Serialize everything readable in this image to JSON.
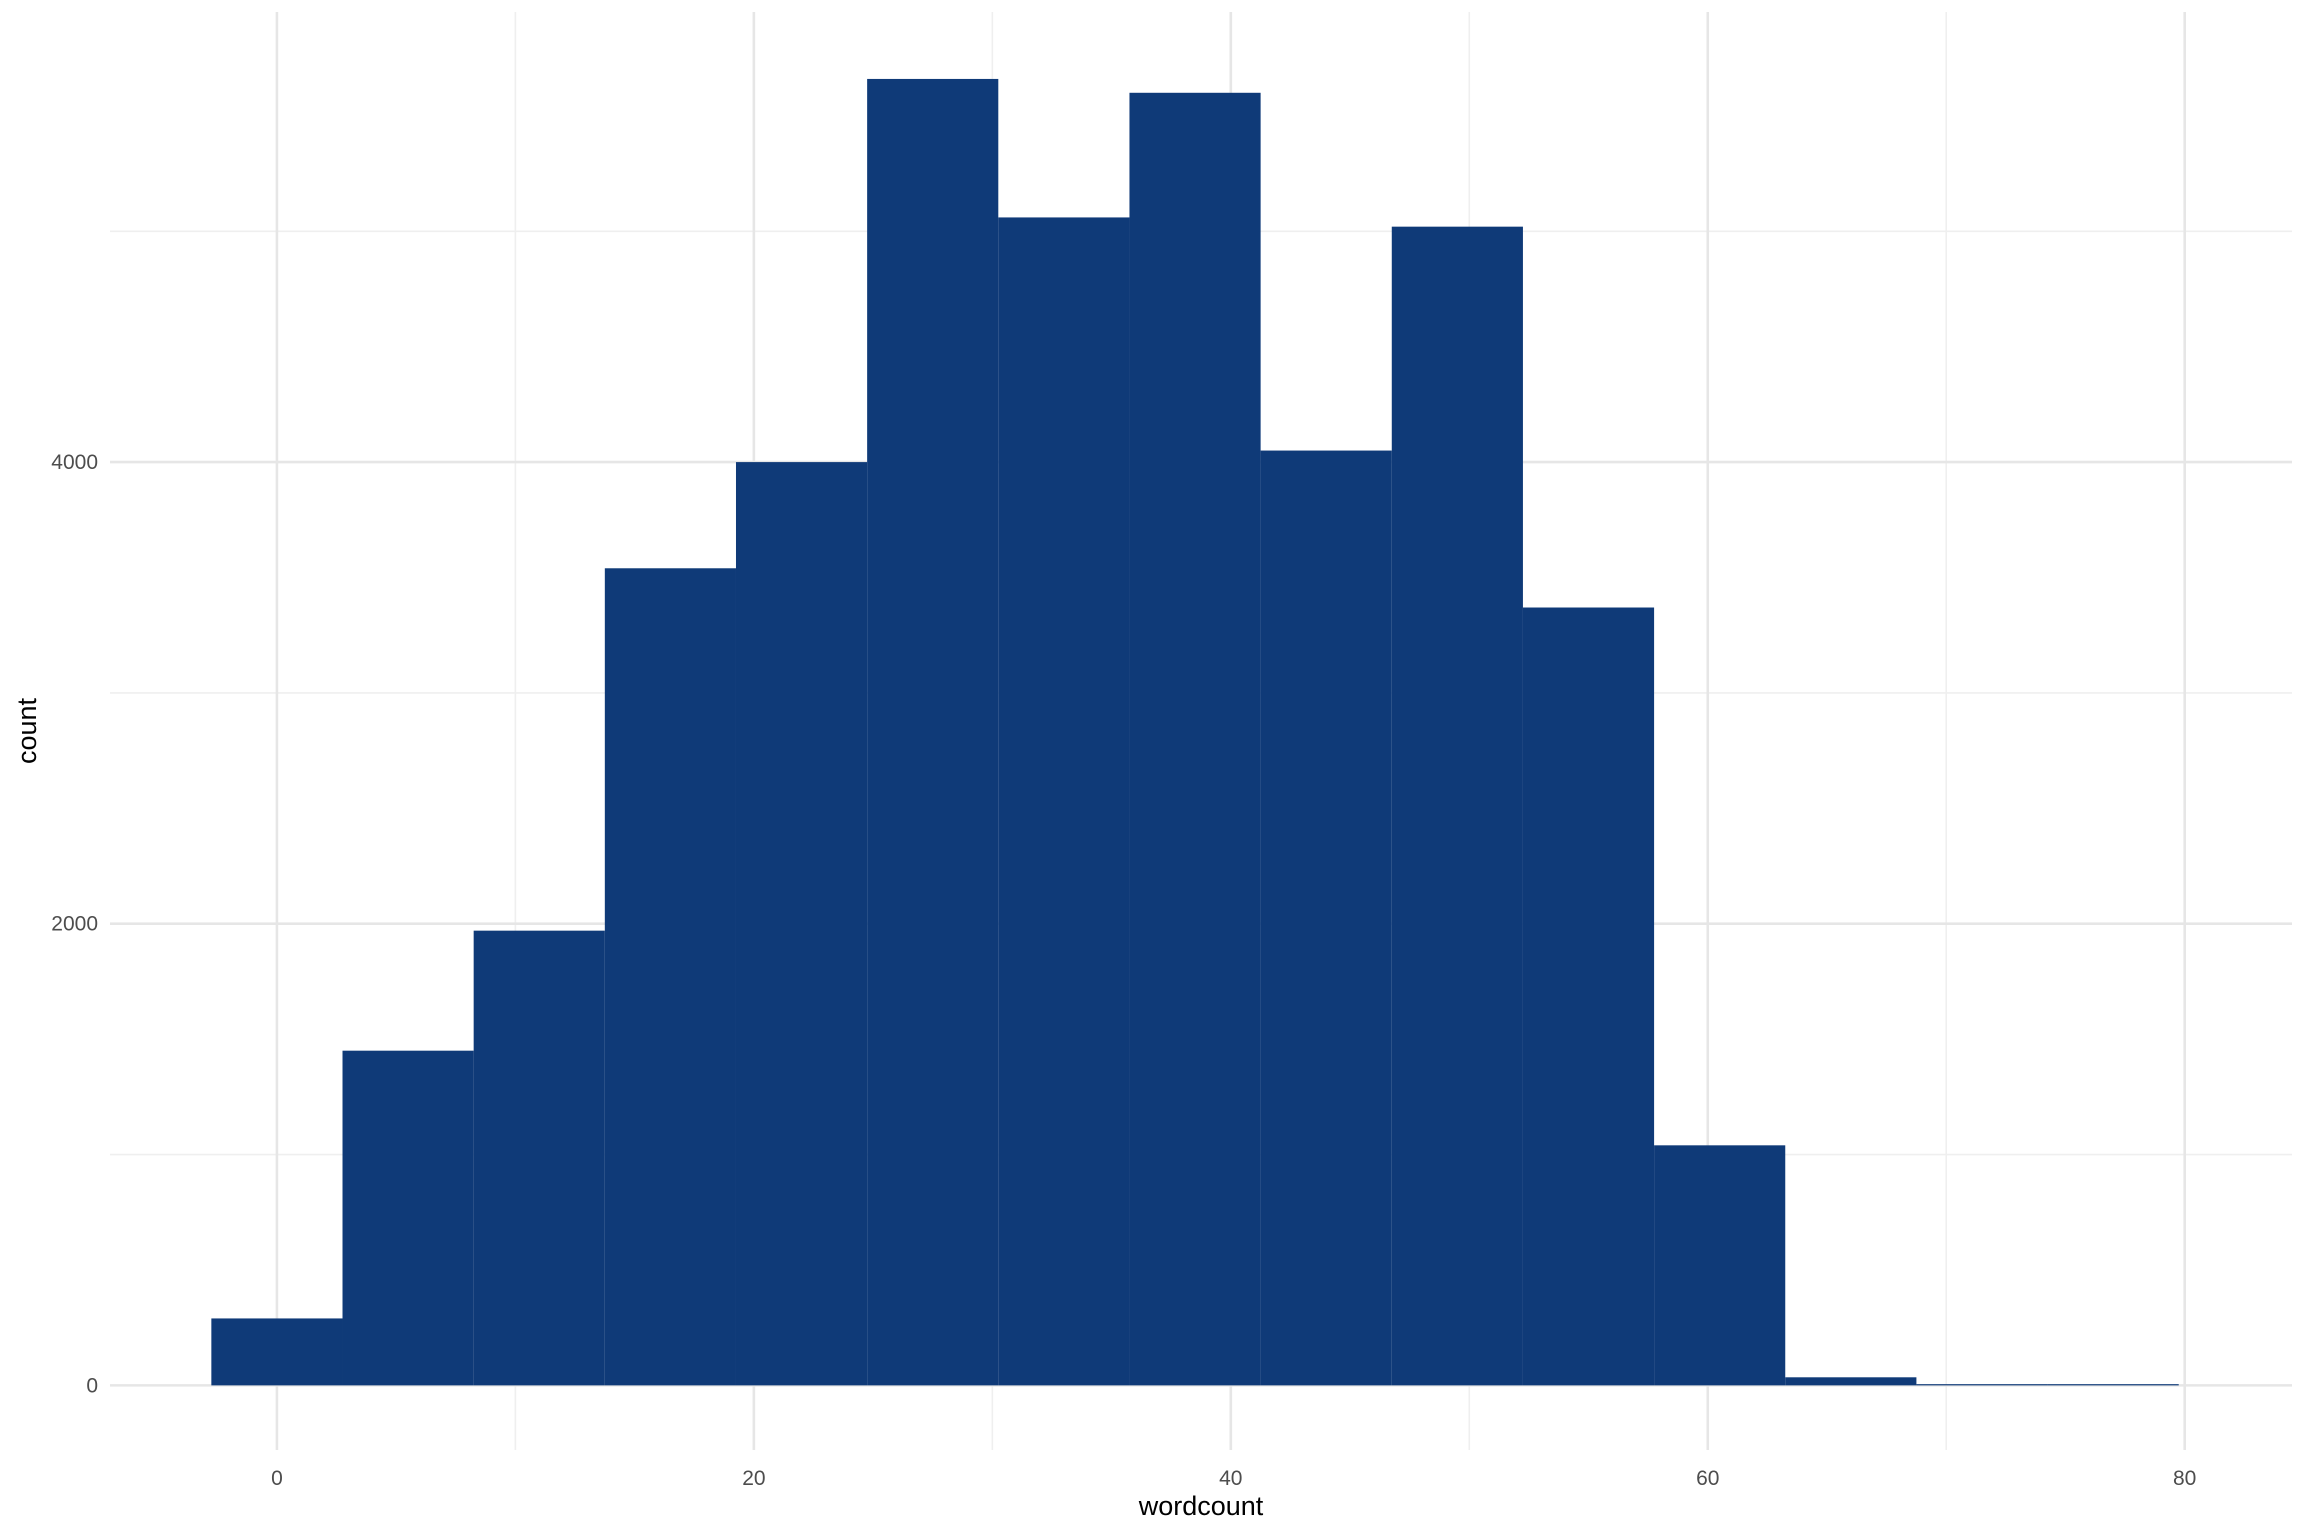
{
  "colors": {
    "bar": "#0f3a78",
    "grid_major": "#e6e6e6",
    "grid_minor": "#efefef",
    "tick_text": "#4d4d4d",
    "axis_text": "#000000"
  },
  "chart_data": {
    "type": "bar",
    "subtype": "histogram",
    "title": "",
    "xlabel": "wordcount",
    "ylabel": "count",
    "xlim": [
      -7,
      84.5
    ],
    "ylim": [
      -280,
      5950
    ],
    "x_ticks": [
      0,
      20,
      40,
      60,
      80
    ],
    "x_tick_labels": [
      "0",
      "20",
      "40",
      "60",
      "80"
    ],
    "x_minor_ticks": [
      10,
      30,
      50,
      70
    ],
    "y_ticks": [
      0,
      2000,
      4000
    ],
    "y_tick_labels": [
      "0",
      "2000",
      "4000"
    ],
    "y_minor_ticks": [
      1000,
      3000,
      5000
    ],
    "bin_width": 5.5,
    "bins": [
      {
        "x0": -2.75,
        "x1": 2.75,
        "count": 290
      },
      {
        "x0": 2.75,
        "x1": 8.25,
        "count": 1450
      },
      {
        "x0": 8.25,
        "x1": 13.75,
        "count": 1970
      },
      {
        "x0": 13.75,
        "x1": 19.25,
        "count": 3540
      },
      {
        "x0": 19.25,
        "x1": 24.75,
        "count": 4000
      },
      {
        "x0": 24.75,
        "x1": 30.25,
        "count": 5660
      },
      {
        "x0": 30.25,
        "x1": 35.75,
        "count": 5060
      },
      {
        "x0": 35.75,
        "x1": 41.25,
        "count": 5600
      },
      {
        "x0": 41.25,
        "x1": 46.75,
        "count": 4050
      },
      {
        "x0": 46.75,
        "x1": 52.25,
        "count": 5020
      },
      {
        "x0": 52.25,
        "x1": 57.75,
        "count": 3370
      },
      {
        "x0": 57.75,
        "x1": 63.25,
        "count": 1040
      },
      {
        "x0": 63.25,
        "x1": 68.75,
        "count": 35
      },
      {
        "x0": 68.75,
        "x1": 74.25,
        "count": 5
      },
      {
        "x0": 74.25,
        "x1": 79.75,
        "count": 3
      }
    ]
  }
}
